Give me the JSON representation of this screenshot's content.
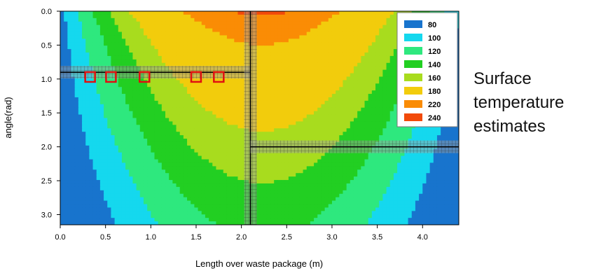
{
  "chart_data": {
    "type": "heatmap",
    "title": "",
    "xlabel": "Length over waste package (m)",
    "ylabel": "angle(rad)",
    "xlim": [
      0.0,
      4.4
    ],
    "ylim": [
      0.0,
      3.15
    ],
    "y_inverted": true,
    "grid": false,
    "legend_position": "top-right",
    "x_ticks": [
      "0.0",
      "0.5",
      "1.0",
      "1.5",
      "2.0",
      "2.5",
      "3.0",
      "3.5",
      "4.0"
    ],
    "y_ticks": [
      "0.0",
      "0.5",
      "1.0",
      "1.5",
      "2.0",
      "2.5",
      "3.0"
    ],
    "x_tick_values": [
      0.0,
      0.5,
      1.0,
      1.5,
      2.0,
      2.5,
      3.0,
      3.5,
      4.0
    ],
    "y_tick_values": [
      0.0,
      0.5,
      1.0,
      1.5,
      2.0,
      2.5,
      3.0
    ],
    "levels": [
      {
        "label": "80",
        "value": 80,
        "color": "#1874cd"
      },
      {
        "label": "100",
        "value": 100,
        "color": "#15d8ee"
      },
      {
        "label": "120",
        "value": 120,
        "color": "#2ee87e"
      },
      {
        "label": "140",
        "value": 140,
        "color": "#22cf22"
      },
      {
        "label": "160",
        "value": 160,
        "color": "#a8dc1e"
      },
      {
        "label": "180",
        "value": 180,
        "color": "#f2cc0c"
      },
      {
        "label": "220",
        "value": 220,
        "color": "#fa8c05"
      },
      {
        "label": "240",
        "value": 240,
        "color": "#f24a0a"
      }
    ],
    "annotations": [
      {
        "type": "horizontal-band",
        "y": 0.9,
        "x_from": 0.0,
        "x_to": 2.1
      },
      {
        "type": "vertical-band",
        "x": 2.1,
        "y_from": 0.0,
        "y_to": 3.15
      },
      {
        "type": "horizontal-band",
        "y": 2.0,
        "x_from": 2.1,
        "x_to": 4.4
      },
      {
        "type": "markers",
        "y": 0.97,
        "x": [
          0.33,
          0.56,
          0.93,
          1.5,
          1.75
        ],
        "color": "#e01010"
      }
    ]
  },
  "annotation": {
    "lines": [
      "Surface",
      "temperature",
      "estimates"
    ]
  }
}
